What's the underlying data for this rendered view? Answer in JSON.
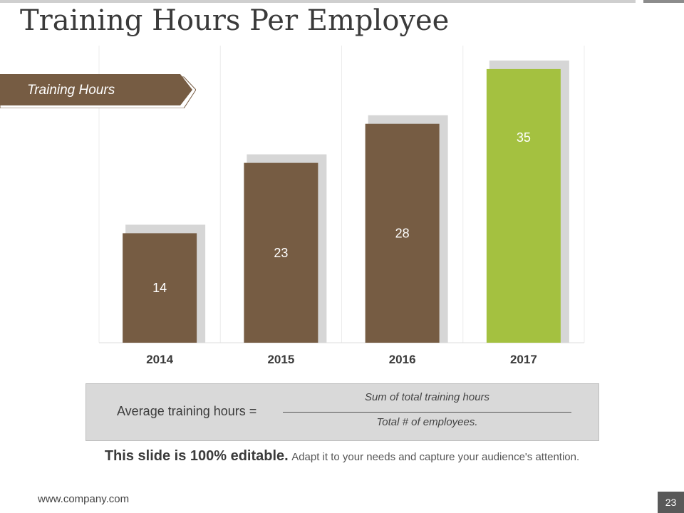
{
  "slide": {
    "title": "Training Hours Per Employee",
    "ribbon_label": "Training Hours",
    "formula": {
      "lhs": "Average training hours =",
      "numerator": "Sum of total training hours",
      "denominator": "Total # of employees."
    },
    "editable_note": {
      "bold": "This slide is 100% editable.",
      "rest": "Adapt it to your needs and capture your audience's attention."
    },
    "website": "www.company.com",
    "page_number": "23"
  },
  "colors": {
    "bar": "#765c43",
    "highlight_bar": "#a4c140",
    "shadow": "#d6d6d6",
    "ribbon": "#765c43",
    "grid": "#ececec"
  },
  "chart_data": {
    "type": "bar",
    "title": "",
    "xlabel": "",
    "ylabel": "",
    "categories": [
      "2014",
      "2015",
      "2016",
      "2017"
    ],
    "values": [
      14,
      23,
      28,
      35
    ],
    "highlight_category": "2017",
    "data_labels": true,
    "ylim": [
      0,
      38
    ],
    "grid": true
  }
}
